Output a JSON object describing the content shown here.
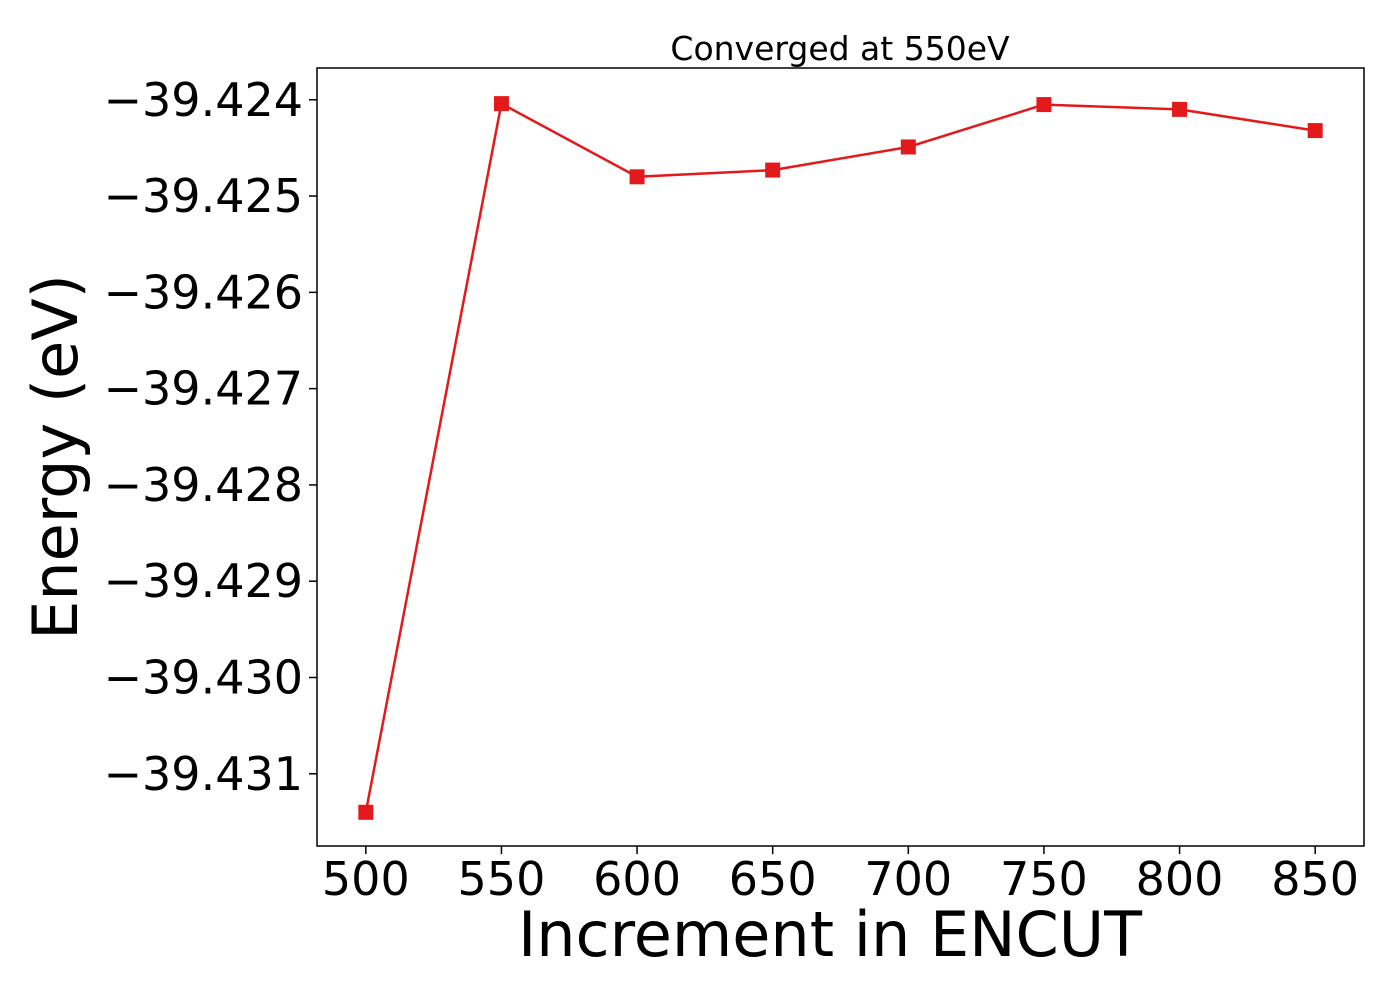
{
  "chart_data": {
    "type": "line",
    "title": "Converged at 550eV",
    "xlabel": "Increment in ENCUT",
    "ylabel": "Energy (eV)",
    "x": [
      500,
      550,
      600,
      650,
      700,
      750,
      800,
      850
    ],
    "series": [
      {
        "values": [
          -39.4314,
          -39.42404,
          -39.4248,
          -39.42473,
          -39.42449,
          -39.42405,
          -39.4241,
          -39.42432
        ],
        "color": "#e31a1c",
        "marker": "square"
      }
    ],
    "xlim": [
      482,
      868
    ],
    "ylim": [
      -39.43175,
      -39.42367
    ],
    "xticks": [
      500,
      550,
      600,
      650,
      700,
      750,
      800,
      850
    ],
    "xtick_labels": [
      "500",
      "550",
      "600",
      "650",
      "700",
      "750",
      "800",
      "850"
    ],
    "yticks": [
      -39.424,
      -39.425,
      -39.426,
      -39.427,
      -39.428,
      -39.429,
      -39.43,
      -39.431
    ],
    "ytick_labels": [
      "−39.424",
      "−39.425",
      "−39.426",
      "−39.427",
      "−39.428",
      "−39.429",
      "−39.430",
      "−39.431"
    ],
    "grid": false,
    "legend": "none"
  }
}
